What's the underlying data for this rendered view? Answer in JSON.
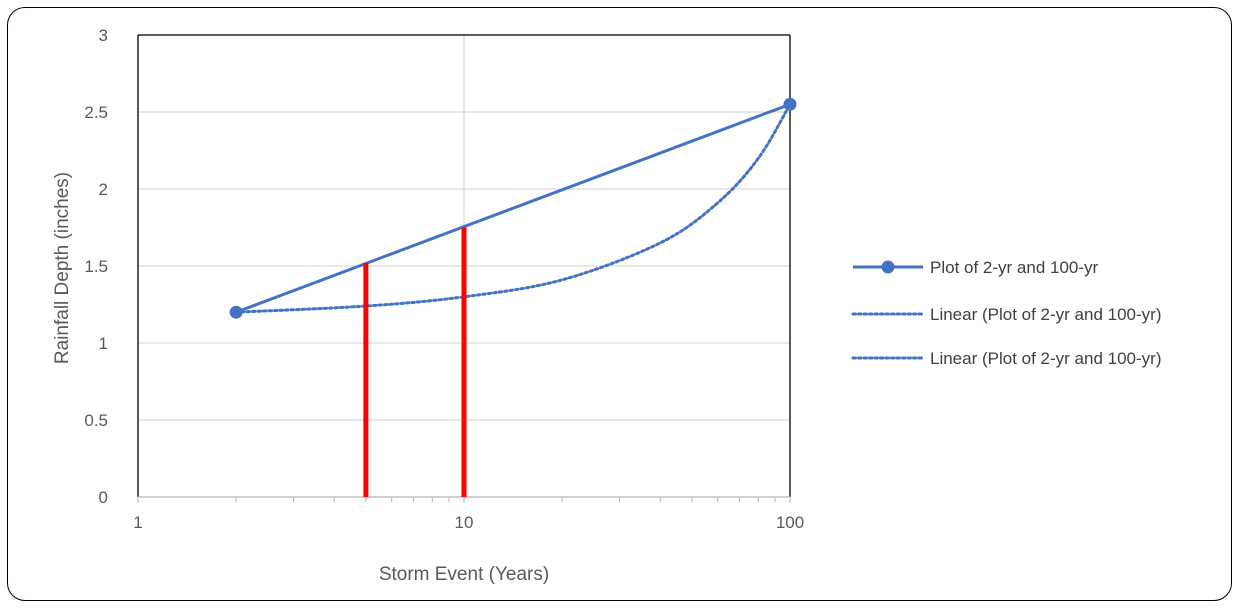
{
  "chart_data": {
    "type": "line",
    "xlabel": "Storm Event (Years)",
    "ylabel": "Rainfall Depth (inches)",
    "xscale": "log",
    "xlim": [
      1,
      100
    ],
    "ylim": [
      0,
      3
    ],
    "x_ticks": [
      "1",
      "10",
      "100"
    ],
    "y_ticks": [
      "0",
      "0.5",
      "1",
      "1.5",
      "2",
      "2.5",
      "3"
    ],
    "grid": true,
    "legend_position": "right",
    "series": [
      {
        "name": "Plot of 2-yr and 100-yr",
        "style": "solid-markers",
        "color": "#4472C4",
        "x": [
          2,
          100
        ],
        "y": [
          1.2,
          2.55
        ]
      },
      {
        "name": "Linear (Plot of 2-yr and 100-yr)",
        "style": "dotted",
        "color": "#4472C4",
        "x": [
          2,
          5,
          10,
          20,
          40,
          60,
          80,
          100
        ],
        "y": [
          1.2,
          1.24,
          1.3,
          1.41,
          1.65,
          1.91,
          2.2,
          2.55
        ]
      },
      {
        "name": "Linear (Plot of 2-yr and 100-yr)",
        "style": "dotted",
        "color": "#4472C4",
        "legend_only": true
      }
    ],
    "vertical_markers": [
      {
        "x": 5,
        "y": 1.52,
        "color": "#FF0000"
      },
      {
        "x": 10,
        "y": 1.75,
        "color": "#FF0000"
      }
    ]
  }
}
